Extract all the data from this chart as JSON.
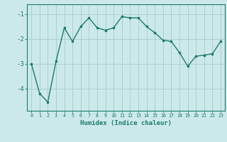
{
  "x": [
    0,
    1,
    2,
    3,
    4,
    5,
    6,
    7,
    8,
    9,
    10,
    11,
    12,
    13,
    14,
    15,
    16,
    17,
    18,
    19,
    20,
    21,
    22,
    23
  ],
  "y": [
    -3.0,
    -4.2,
    -4.55,
    -2.9,
    -1.55,
    -2.1,
    -1.5,
    -1.15,
    -1.55,
    -1.65,
    -1.55,
    -1.1,
    -1.15,
    -1.15,
    -1.5,
    -1.75,
    -2.05,
    -2.1,
    -2.55,
    -3.1,
    -2.7,
    -2.65,
    -2.6,
    -2.1
  ],
  "line_color": "#1a7a6e",
  "marker": "s",
  "marker_size": 2,
  "bg_color": "#cce9e9",
  "grid_color": "#aacfcf",
  "tick_color": "#1a7a6e",
  "xlabel": "Humidex (Indice chaleur)",
  "xlabel_fontsize": 6.5,
  "xlim": [
    -0.5,
    23.5
  ],
  "ylim": [
    -4.9,
    -0.6
  ],
  "yticks": [
    -4,
    -3,
    -2,
    -1
  ],
  "linewidth": 1.0
}
